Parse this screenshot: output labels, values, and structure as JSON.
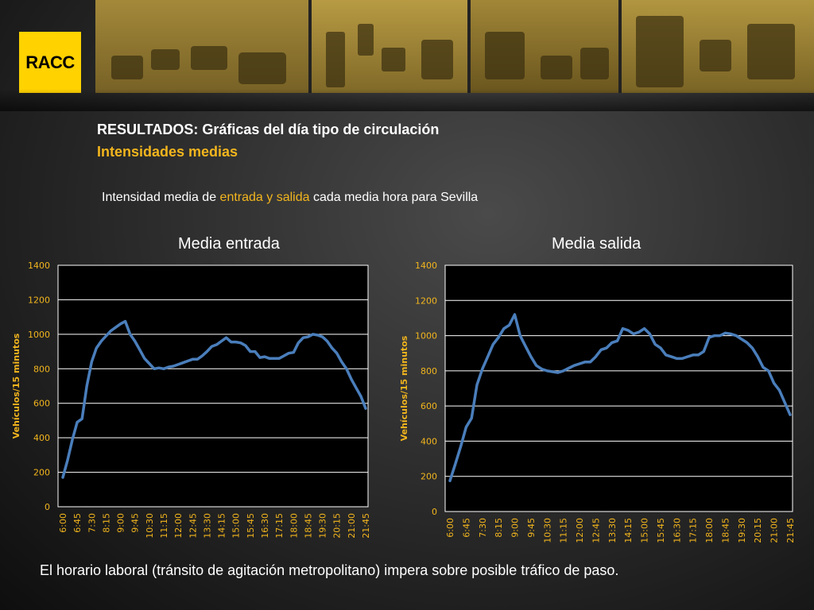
{
  "logo": {
    "text": "RACC"
  },
  "header": {
    "title": "RESULTADOS: Gráficas del día tipo de circulación",
    "subtitle": "Intensidades medias"
  },
  "description": {
    "before": "Intensidad media de ",
    "highlight": "entrada y salida",
    "after": " cada media hora para Sevilla"
  },
  "footer": {
    "text": "El horario laboral (tránsito de agitación metropolitano) impera sobre posible tráfico de paso."
  },
  "colors": {
    "accent": "#f2b51d",
    "line": "#4a7ebb",
    "logo_bg": "#ffd200"
  },
  "chart_data": [
    {
      "type": "line",
      "title": "Media entrada",
      "ylabel": "Vehículos/15 minutos",
      "ylim": [
        0,
        1400
      ],
      "yticks": [
        0,
        200,
        400,
        600,
        800,
        1000,
        1200,
        1400
      ],
      "xticks": [
        "6:00",
        "6:45",
        "7:30",
        "8:15",
        "9:00",
        "9:45",
        "10:30",
        "11:15",
        "12:00",
        "12:45",
        "13:30",
        "14:15",
        "15:00",
        "15:45",
        "16:30",
        "17:15",
        "18:00",
        "18:45",
        "19:30",
        "20:15",
        "21:00",
        "21:45"
      ],
      "x_start": "6:00",
      "x_step_minutes": 15,
      "grid": true,
      "series": [
        {
          "values": [
            170,
            270,
            390,
            490,
            510,
            700,
            840,
            920,
            960,
            990,
            1020,
            1040,
            1060,
            1075,
            1000,
            960,
            910,
            860,
            830,
            800,
            805,
            800,
            810,
            815,
            825,
            835,
            845,
            855,
            855,
            875,
            900,
            930,
            940,
            960,
            980,
            955,
            955,
            950,
            935,
            900,
            900,
            865,
            870,
            860,
            860,
            860,
            875,
            890,
            895,
            950,
            980,
            985,
            1000,
            995,
            985,
            960,
            920,
            890,
            840,
            800,
            740,
            690,
            640,
            570
          ]
        }
      ]
    },
    {
      "type": "line",
      "title": "Media salida",
      "ylabel": "Vehículos/15 minutos",
      "ylim": [
        0,
        1400
      ],
      "yticks": [
        0,
        200,
        400,
        600,
        800,
        1000,
        1200,
        1400
      ],
      "xticks": [
        "6:00",
        "6:45",
        "7:30",
        "8:15",
        "9:00",
        "9:45",
        "10:30",
        "11:15",
        "12:00",
        "12:45",
        "13:30",
        "14:15",
        "15:00",
        "15:45",
        "16:30",
        "17:15",
        "18:00",
        "18:45",
        "19:30",
        "20:15",
        "21:00",
        "21:45"
      ],
      "x_start": "6:00",
      "x_step_minutes": 15,
      "grid": true,
      "series": [
        {
          "values": [
            175,
            270,
            370,
            480,
            530,
            720,
            810,
            880,
            950,
            990,
            1040,
            1060,
            1120,
            1000,
            940,
            880,
            830,
            810,
            800,
            795,
            790,
            800,
            815,
            830,
            840,
            850,
            850,
            880,
            920,
            930,
            960,
            970,
            1040,
            1030,
            1010,
            1020,
            1040,
            1010,
            950,
            930,
            890,
            880,
            870,
            870,
            880,
            890,
            890,
            910,
            990,
            1000,
            1000,
            1015,
            1010,
            1000,
            980,
            960,
            930,
            880,
            820,
            800,
            730,
            690,
            620,
            550
          ]
        }
      ]
    }
  ]
}
